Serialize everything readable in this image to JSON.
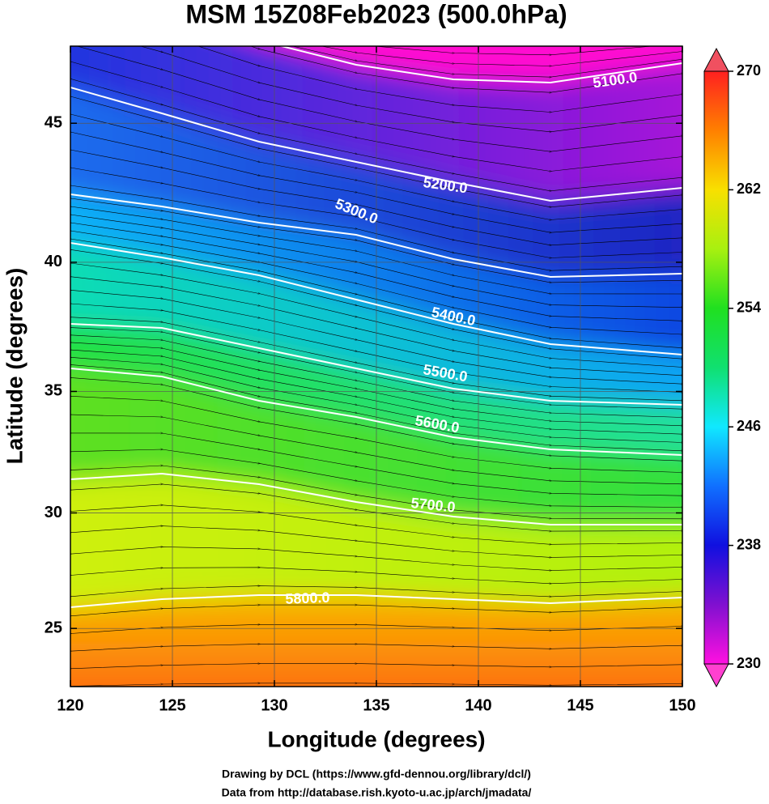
{
  "chart_data": {
    "type": "map",
    "projection": "mercator",
    "title": "MSM 15Z08Feb2023 (500.0hPa)",
    "x_label": "Longitude (degrees)",
    "y_label": "Latitude (degrees)",
    "xlim": [
      120,
      150
    ],
    "ylim": [
      22.4,
      47.6
    ],
    "xticks": [
      120,
      125,
      130,
      135,
      140,
      145,
      150
    ],
    "yticks": [
      25,
      30,
      35,
      40,
      45
    ],
    "grid": true,
    "contours": [
      {
        "level": 5100,
        "label": "5100.0"
      },
      {
        "level": 5200,
        "label": "5200.0"
      },
      {
        "level": 5300,
        "label": "5300.0"
      },
      {
        "level": 5400,
        "label": "5400.0"
      },
      {
        "level": 5500,
        "label": "5500.0"
      },
      {
        "level": 5600,
        "label": "5600.0"
      },
      {
        "level": 5700,
        "label": "5700.0"
      },
      {
        "level": 5800,
        "label": "5800.0"
      }
    ],
    "colorbar": {
      "lim": [
        230,
        270
      ],
      "ticks": [
        230,
        238,
        246,
        254,
        262,
        270
      ]
    }
  },
  "credits": [
    "Drawing by DCL (https://www.gfd-dennou.org/library/dcl/)",
    "Data from http://database.rish.kyoto-u.ac.jp/arch/jmadata/"
  ]
}
